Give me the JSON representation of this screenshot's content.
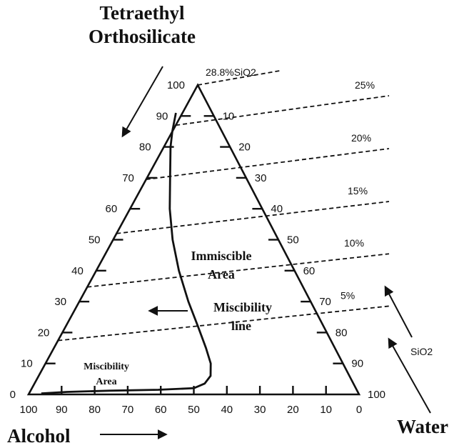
{
  "diagram": {
    "corners": {
      "top_line1": "Tetraethyl",
      "top_line2": "Orthosilicate",
      "bottom_left": "Alcohol",
      "bottom_right": "Water"
    },
    "regions": {
      "immiscible_line1": "Immiscible",
      "immiscible_line2": "Area",
      "miscibility_line1": "Miscibility",
      "miscibility_line2": "line",
      "misc_area_line1": "Miscibility",
      "misc_area_line2": "Area"
    },
    "axes": {
      "left_ticks": [
        "0",
        "10",
        "20",
        "30",
        "40",
        "50",
        "60",
        "70",
        "80",
        "90",
        "100"
      ],
      "right_ticks": [
        "10",
        "20",
        "30",
        "40",
        "50",
        "60",
        "70",
        "80",
        "90",
        "100"
      ],
      "bottom_ticks": [
        "100",
        "90",
        "80",
        "70",
        "60",
        "50",
        "40",
        "30",
        "20",
        "10",
        "0"
      ]
    },
    "sio2_lines": [
      {
        "label": "28.8%SiO2",
        "teos_fraction": 1.0
      },
      {
        "label": "25%",
        "teos_fraction": 0.87
      },
      {
        "label": "20%",
        "teos_fraction": 0.695
      },
      {
        "label": "15%",
        "teos_fraction": 0.52
      },
      {
        "label": "10%",
        "teos_fraction": 0.347
      },
      {
        "label": "5%",
        "teos_fraction": 0.174
      }
    ],
    "sio2_axis_label": "SiO2",
    "miscibility_curve": [
      {
        "alcohol": 0.11,
        "teos": 0.91
      },
      {
        "alcohol": 0.15,
        "teos": 0.85
      },
      {
        "alcohol": 0.18,
        "teos": 0.8
      },
      {
        "alcohol": 0.23,
        "teos": 0.7
      },
      {
        "alcohol": 0.28,
        "teos": 0.6
      },
      {
        "alcohol": 0.32,
        "teos": 0.5
      },
      {
        "alcohol": 0.35,
        "teos": 0.4
      },
      {
        "alcohol": 0.37,
        "teos": 0.3
      },
      {
        "alcohol": 0.38,
        "teos": 0.22
      },
      {
        "alcohol": 0.39,
        "teos": 0.15
      },
      {
        "alcohol": 0.4,
        "teos": 0.1
      },
      {
        "alcohol": 0.42,
        "teos": 0.06
      },
      {
        "alcohol": 0.45,
        "teos": 0.035
      },
      {
        "alcohol": 0.49,
        "teos": 0.02
      },
      {
        "alcohol": 0.6,
        "teos": 0.015
      },
      {
        "alcohol": 0.75,
        "teos": 0.012
      },
      {
        "alcohol": 0.88,
        "teos": 0.008
      },
      {
        "alcohol": 0.96,
        "teos": 0.003
      }
    ]
  }
}
